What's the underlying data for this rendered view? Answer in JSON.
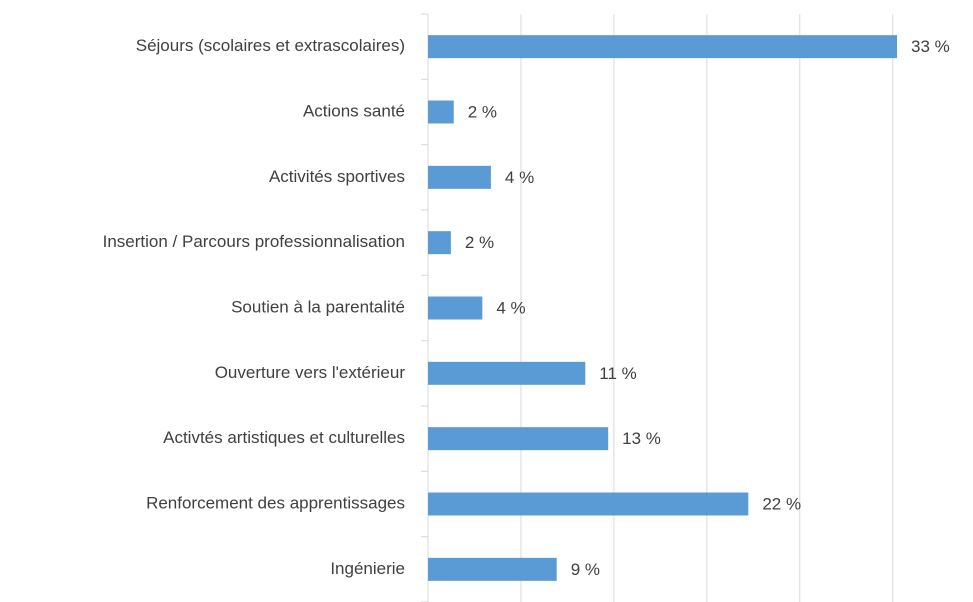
{
  "chart_data": {
    "type": "barh",
    "categories": [
      "Séjours (scolaires et extrascolaires)",
      "Actions santé",
      "Activités sportives",
      "Insertion / Parcours professionnalisation",
      "Soutien à la parentalité",
      "Ouverture vers l'extérieur",
      "Activtés artistiques et culturelles",
      "Renforcement des apprentissages",
      "Ingénierie"
    ],
    "values": [
      32.8,
      1.8,
      4.4,
      1.6,
      3.8,
      11.0,
      12.6,
      22.4,
      9.0
    ],
    "value_labels": [
      "33 %",
      "2 %",
      "4 %",
      "2 %",
      "4 %",
      "11 %",
      "13 %",
      "22 %",
      "9 %"
    ],
    "color": "#5b9bd5",
    "xlim": [
      0,
      35
    ],
    "xticks": [
      0,
      6.5,
      13,
      19.5,
      26,
      32.5
    ],
    "grid": true
  }
}
